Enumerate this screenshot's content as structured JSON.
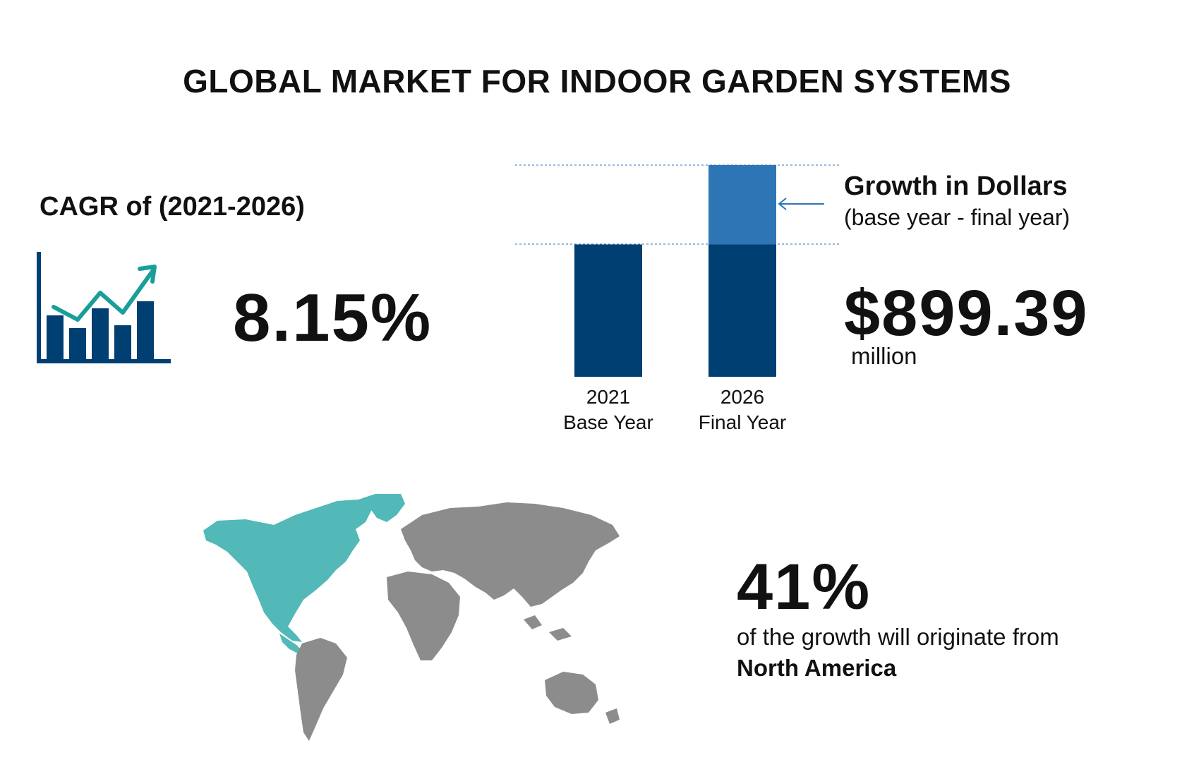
{
  "title": "GLOBAL MARKET FOR INDOOR GARDEN SYSTEMS",
  "cagr": {
    "label": "CAGR of (2021-2026)",
    "value": "8.15%",
    "icon": "growth-chart-icon"
  },
  "growth": {
    "label": "Growth in Dollars",
    "sub": "(base year - final year)",
    "value": "$899.39",
    "unit": "million",
    "icon": "arrow-left-icon"
  },
  "share": {
    "value": "41%",
    "text": "of the growth will originate from",
    "region": "North America",
    "map_icon": "world-map-icon"
  },
  "colors": {
    "dark_blue": "#003F72",
    "light_blue": "#2E75B6",
    "teal": "#52B8B8",
    "gray": "#8C8C8C",
    "text": "#111111"
  },
  "chart_data": {
    "type": "bar",
    "categories": [
      "2021",
      "2026"
    ],
    "category_sublabels": [
      "Base Year",
      "Final Year"
    ],
    "series": [
      {
        "values": [
          1,
          1
        ]
      },
      {
        "values": [
          0,
          0.6
        ]
      }
    ],
    "ylim": [
      0,
      1.6
    ],
    "grid": false
  }
}
